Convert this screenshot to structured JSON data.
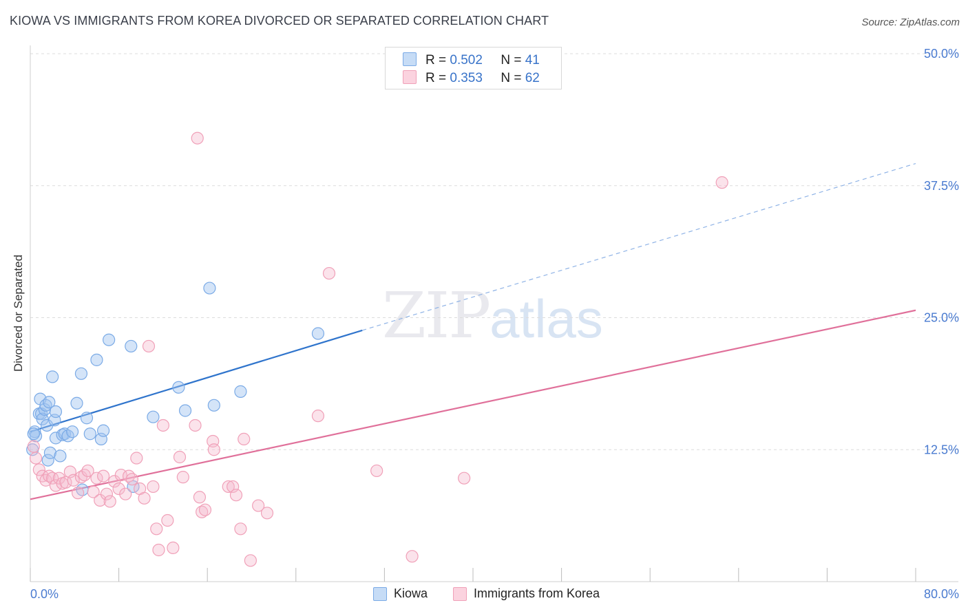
{
  "title": "KIOWA VS IMMIGRANTS FROM KOREA DIVORCED OR SEPARATED CORRELATION CHART",
  "source": "Source: ZipAtlas.com",
  "watermark": {
    "zip": "ZIP",
    "atlas": "atlas"
  },
  "colors": {
    "kiowa": "#7aaae6",
    "kiowa_line": "#2f74cc",
    "korea": "#f0a0b8",
    "korea_line": "#e0709a",
    "tick_label": "#4a7bd0"
  },
  "legend": {
    "r1": {
      "r_label": "R =",
      "r_value": "0.502",
      "n_label": "N =",
      "n_value": "41"
    },
    "r2": {
      "r_label": "R =",
      "r_value": "0.353",
      "n_label": "N =",
      "n_value": "62"
    }
  },
  "bottom_legend": {
    "kiowa": "Kiowa",
    "korea": "Immigrants from Korea"
  },
  "chart_data": {
    "type": "scatter",
    "xlabel": "",
    "ylabel": "Divorced or Separated",
    "xlim": [
      0,
      80
    ],
    "ylim": [
      0,
      50
    ],
    "x_tick_labels": [
      "0.0%",
      "80.0%"
    ],
    "y_ticks": [
      12.5,
      25.0,
      37.5,
      50.0
    ],
    "y_tick_labels": [
      "12.5%",
      "25.0%",
      "37.5%",
      "50.0%"
    ],
    "grid": "horizontal dashed",
    "legend_position": "top-center",
    "series": [
      {
        "name": "Kiowa",
        "trend": {
          "x0": 0,
          "y0": 14.2,
          "x1": 30,
          "y1": 23.8,
          "dashed_to_x": 80,
          "dashed_to_y": 39.6
        },
        "points": [
          [
            0.4,
            14.2
          ],
          [
            0.5,
            13.8
          ],
          [
            0.8,
            15.9
          ],
          [
            0.9,
            17.3
          ],
          [
            1.0,
            15.9
          ],
          [
            1.1,
            15.4
          ],
          [
            1.3,
            16.3
          ],
          [
            1.4,
            16.7
          ],
          [
            1.5,
            14.8
          ],
          [
            1.6,
            11.5
          ],
          [
            1.7,
            17.0
          ],
          [
            1.8,
            12.2
          ],
          [
            2.0,
            19.4
          ],
          [
            2.2,
            15.3
          ],
          [
            2.3,
            16.1
          ],
          [
            2.3,
            13.6
          ],
          [
            2.7,
            11.9
          ],
          [
            2.9,
            13.9
          ],
          [
            3.1,
            14.0
          ],
          [
            3.4,
            13.8
          ],
          [
            3.8,
            14.2
          ],
          [
            4.2,
            16.9
          ],
          [
            4.6,
            19.7
          ],
          [
            4.7,
            8.7
          ],
          [
            5.1,
            15.5
          ],
          [
            5.4,
            14.0
          ],
          [
            6.0,
            21.0
          ],
          [
            6.4,
            13.5
          ],
          [
            6.6,
            14.3
          ],
          [
            7.1,
            22.9
          ],
          [
            9.1,
            22.3
          ],
          [
            9.3,
            9.0
          ],
          [
            11.1,
            15.6
          ],
          [
            13.4,
            18.4
          ],
          [
            14.0,
            16.2
          ],
          [
            16.2,
            27.8
          ],
          [
            16.6,
            16.7
          ],
          [
            19.0,
            18.0
          ],
          [
            26.0,
            23.5
          ],
          [
            0.2,
            12.5
          ],
          [
            0.3,
            14.0
          ]
        ]
      },
      {
        "name": "Immigrants from Korea",
        "trend": {
          "x0": 0,
          "y0": 7.8,
          "x1": 80,
          "y1": 25.7
        },
        "points": [
          [
            0.3,
            12.8
          ],
          [
            0.5,
            11.7
          ],
          [
            0.8,
            10.6
          ],
          [
            1.1,
            10.0
          ],
          [
            1.4,
            9.6
          ],
          [
            1.7,
            10.0
          ],
          [
            2.0,
            9.8
          ],
          [
            2.3,
            9.1
          ],
          [
            2.6,
            9.8
          ],
          [
            2.9,
            9.3
          ],
          [
            3.2,
            9.4
          ],
          [
            3.6,
            10.4
          ],
          [
            3.9,
            9.6
          ],
          [
            4.3,
            8.4
          ],
          [
            4.6,
            9.9
          ],
          [
            4.9,
            10.1
          ],
          [
            5.2,
            10.5
          ],
          [
            5.7,
            8.5
          ],
          [
            6.0,
            9.8
          ],
          [
            6.3,
            7.7
          ],
          [
            6.6,
            10.0
          ],
          [
            6.9,
            8.3
          ],
          [
            7.2,
            7.6
          ],
          [
            7.6,
            9.5
          ],
          [
            8.0,
            8.8
          ],
          [
            8.2,
            10.1
          ],
          [
            8.6,
            8.3
          ],
          [
            8.9,
            10.0
          ],
          [
            9.2,
            9.7
          ],
          [
            9.6,
            11.7
          ],
          [
            9.9,
            8.8
          ],
          [
            10.3,
            7.9
          ],
          [
            10.7,
            22.3
          ],
          [
            11.1,
            9.0
          ],
          [
            11.4,
            5.0
          ],
          [
            11.6,
            3.0
          ],
          [
            12.4,
            5.8
          ],
          [
            12.9,
            3.2
          ],
          [
            13.5,
            11.8
          ],
          [
            13.8,
            9.9
          ],
          [
            15.1,
            42.0
          ],
          [
            15.3,
            8.0
          ],
          [
            15.5,
            6.6
          ],
          [
            15.8,
            6.8
          ],
          [
            16.5,
            13.3
          ],
          [
            16.6,
            12.5
          ],
          [
            17.9,
            9.0
          ],
          [
            18.3,
            9.0
          ],
          [
            18.6,
            8.2
          ],
          [
            19.0,
            5.0
          ],
          [
            19.3,
            13.5
          ],
          [
            19.9,
            2.0
          ],
          [
            20.6,
            7.2
          ],
          [
            21.4,
            6.5
          ],
          [
            26.0,
            15.7
          ],
          [
            27.0,
            29.2
          ],
          [
            31.3,
            10.5
          ],
          [
            34.5,
            2.4
          ],
          [
            39.2,
            9.8
          ],
          [
            62.5,
            37.8
          ],
          [
            14.9,
            14.8
          ],
          [
            12.0,
            14.8
          ]
        ]
      }
    ]
  }
}
